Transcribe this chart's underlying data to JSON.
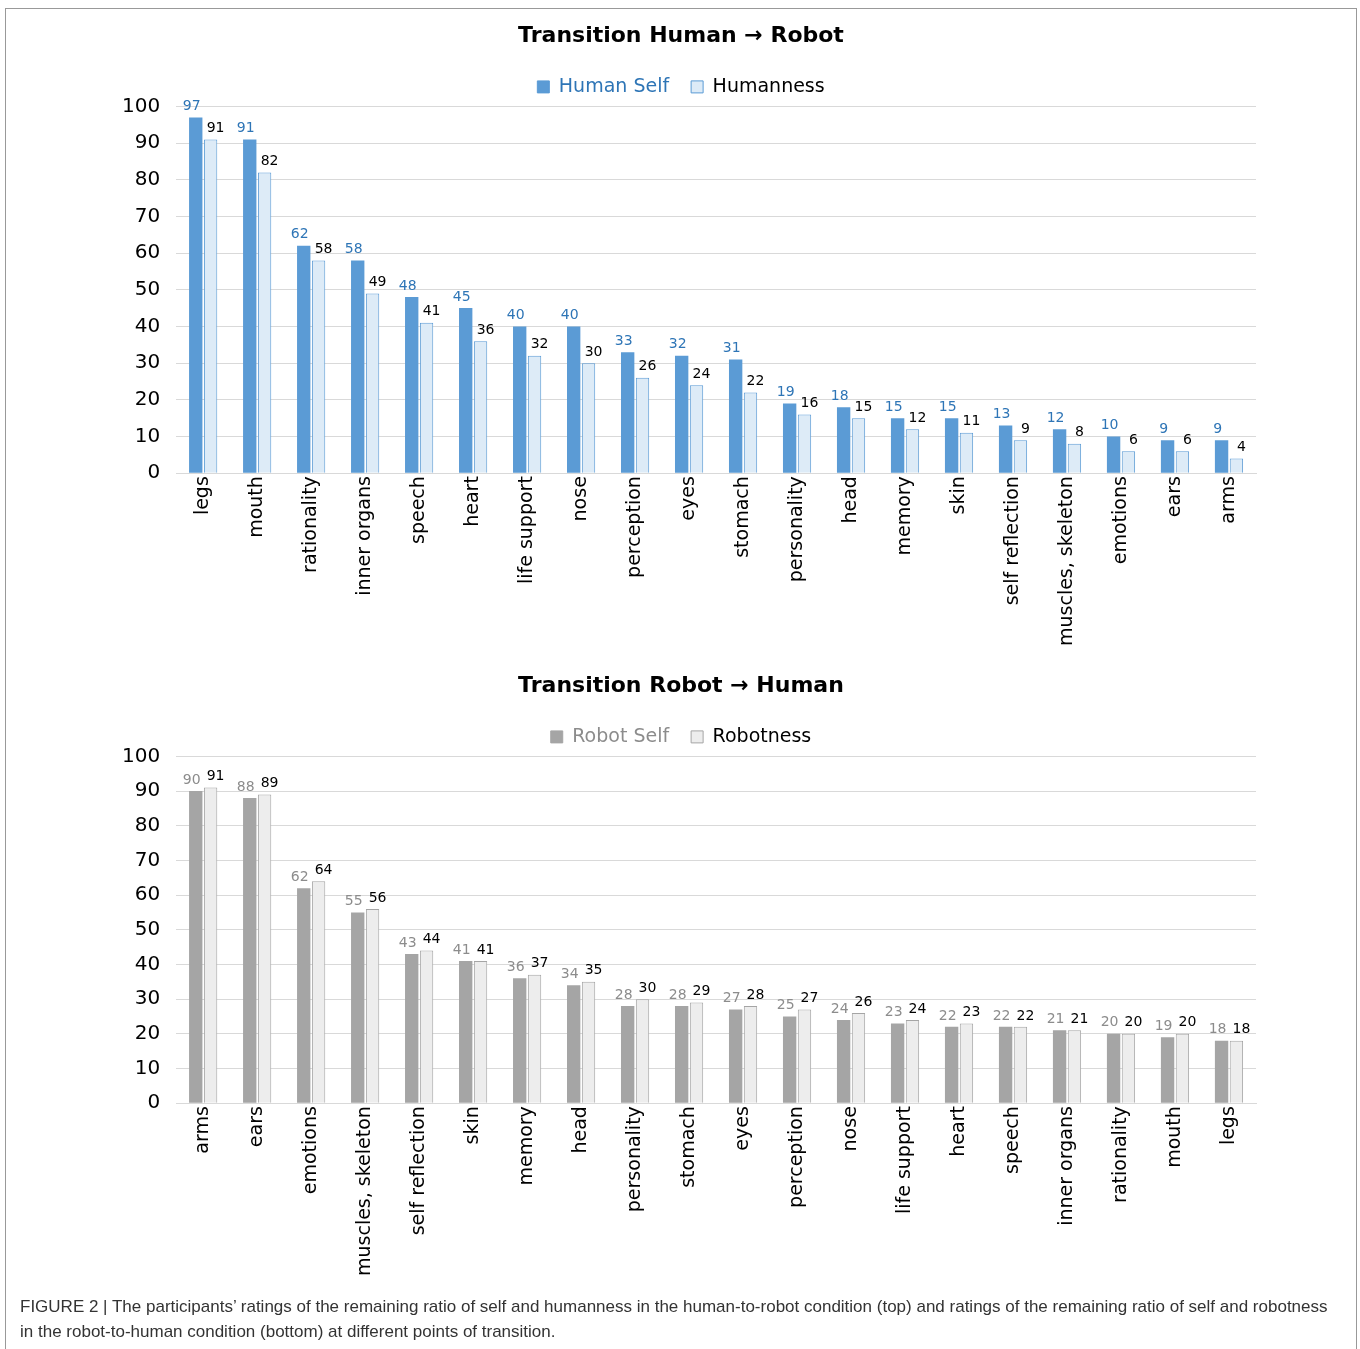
{
  "chart_data": [
    {
      "type": "bar",
      "title": "Transition Human → Robot",
      "categories": [
        "legs",
        "mouth",
        "rationality",
        "inner organs",
        "speech",
        "heart",
        "life support",
        "nose",
        "perception",
        "eyes",
        "stomach",
        "personality",
        "head",
        "memory",
        "skin",
        "self reflection",
        "muscles, skeleton",
        "emotions",
        "ears",
        "arms"
      ],
      "series": [
        {
          "name": "Human Self",
          "color": "#5b9bd5",
          "values": [
            97,
            91,
            62,
            58,
            48,
            45,
            40,
            40,
            33,
            32,
            31,
            19,
            18,
            15,
            15,
            13,
            12,
            10,
            9,
            9
          ]
        },
        {
          "name": "Humanness",
          "color": "#ddebf7",
          "values": [
            91,
            82,
            58,
            49,
            41,
            36,
            32,
            30,
            26,
            24,
            22,
            16,
            15,
            12,
            11,
            9,
            8,
            6,
            6,
            4
          ]
        }
      ],
      "ylim": [
        0,
        100
      ],
      "yticks": [
        0,
        10,
        20,
        30,
        40,
        50,
        60,
        70,
        80,
        90,
        100
      ],
      "grid": "y",
      "legend": "top",
      "data_labels": true
    },
    {
      "type": "bar",
      "title": "Transition Robot → Human",
      "categories": [
        "arms",
        "ears",
        "emotions",
        "muscles, skeleton",
        "self reflection",
        "skin",
        "memory",
        "head",
        "personality",
        "stomach",
        "eyes",
        "perception",
        "nose",
        "life support",
        "heart",
        "speech",
        "inner organs",
        "rationality",
        "mouth",
        "legs"
      ],
      "series": [
        {
          "name": "Robot Self",
          "color": "#a5a5a5",
          "values": [
            90,
            88,
            62,
            55,
            43,
            41,
            36,
            34,
            28,
            28,
            27,
            25,
            24,
            23,
            22,
            22,
            21,
            20,
            19,
            18
          ]
        },
        {
          "name": "Robotness",
          "color": "#ededed",
          "values": [
            91,
            89,
            64,
            56,
            44,
            41,
            37,
            35,
            30,
            29,
            28,
            27,
            26,
            24,
            23,
            22,
            21,
            20,
            20,
            18
          ]
        }
      ],
      "ylim": [
        0,
        100
      ],
      "yticks": [
        0,
        10,
        20,
        30,
        40,
        50,
        60,
        70,
        80,
        90,
        100
      ],
      "grid": "y",
      "legend": "top",
      "data_labels": true,
      "annotations": [
        "FIGURE 2 | The participants’ ratings of the remaining ratio of self and humanness in the human-to-robot condition (top) and ratings of the remaining ratio of self and robotness in the robot-to-human condition (bottom) at different points of transition."
      ]
    }
  ]
}
